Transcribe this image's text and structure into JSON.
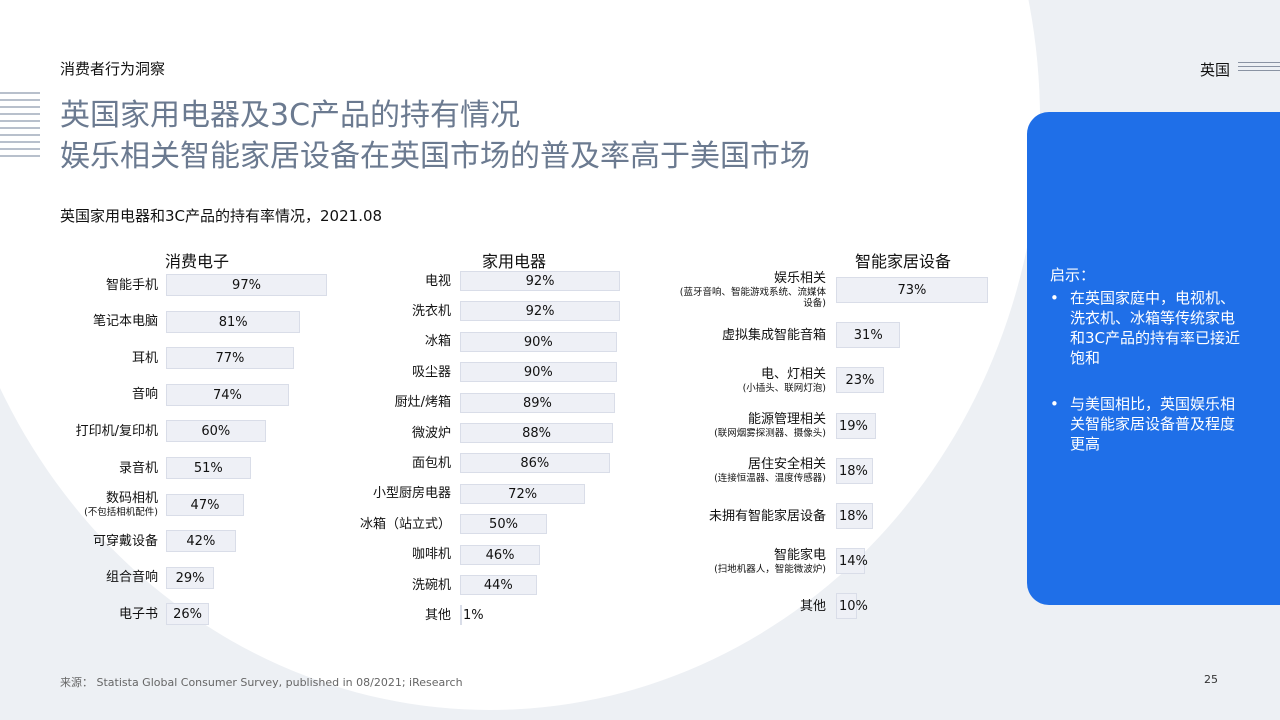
{
  "header": {
    "section_label": "消费者行为洞察",
    "country_label": "英国",
    "title_line1": "英国家用电器及3C产品的持有情况",
    "title_line2": "娱乐相关智能家居设备在英国市场的普及率高于美国市场",
    "subtitle": "英国家用电器和3C产品的持有率情况，2021.08"
  },
  "colors": {
    "page_background": "#edf0f4",
    "title": "#6b7a90",
    "bar_fill": "#eef0f6",
    "bar_border": "#d9dde8",
    "insight_panel": "#1f6fe8"
  },
  "chart_data": [
    {
      "type": "bar",
      "orientation": "horizontal",
      "title": "消费电子",
      "categories": [
        "智能手机",
        "笔记本电脑",
        "耳机",
        "音响",
        "打印机/复印机",
        "录音机",
        "数码相机",
        "可穿戴设备",
        "组合音响",
        "电子书"
      ],
      "notes": [
        "",
        "",
        "",
        "",
        "",
        "",
        "(不包括相机配件)",
        "",
        "",
        ""
      ],
      "values": [
        97,
        81,
        77,
        74,
        60,
        51,
        47,
        42,
        29,
        26
      ],
      "value_labels": [
        "97%",
        "81%",
        "77%",
        "74%",
        "60%",
        "51%",
        "47%",
        "42%",
        "29%",
        "26%"
      ],
      "unit": "%"
    },
    {
      "type": "bar",
      "orientation": "horizontal",
      "title": "家用电器",
      "categories": [
        "电视",
        "洗衣机",
        "冰箱",
        "吸尘器",
        "厨灶/烤箱",
        "微波炉",
        "面包机",
        "小型厨房电器",
        "冰箱（站立式）",
        "咖啡机",
        "洗碗机",
        "其他"
      ],
      "notes": [
        "",
        "",
        "",
        "",
        "",
        "",
        "",
        "",
        "",
        "",
        "",
        ""
      ],
      "values": [
        92,
        92,
        90,
        90,
        89,
        88,
        86,
        72,
        50,
        46,
        44,
        1
      ],
      "value_labels": [
        "92%",
        "92%",
        "90%",
        "90%",
        "89%",
        "88%",
        "86%",
        "72%",
        "50%",
        "46%",
        "44%",
        "1%"
      ],
      "unit": "%"
    },
    {
      "type": "bar",
      "orientation": "horizontal",
      "title": "智能家居设备",
      "categories": [
        "娱乐相关",
        "虚拟集成智能音箱",
        "电、灯相关",
        "能源管理相关",
        "居住安全相关",
        "未拥有智能家居设备",
        "智能家电",
        "其他"
      ],
      "notes": [
        "(蓝牙音响、智能游戏系统、流媒体设备)",
        "",
        "(小插头、联网灯泡)",
        "(联网烟雾探测器、摄像头)",
        "(连接恒温器、温度传感器)",
        "",
        "(扫地机器人，智能微波炉)",
        ""
      ],
      "values": [
        73,
        31,
        23,
        19,
        18,
        18,
        14,
        10
      ],
      "value_labels": [
        "73%",
        "31%",
        "23%",
        "19%",
        "18%",
        "18%",
        "14%",
        "10%"
      ],
      "unit": "%"
    }
  ],
  "insights": {
    "title": "启示：",
    "bullet": "•",
    "items": [
      "在英国家庭中，电视机、洗衣机、冰箱等传统家电和3C产品的持有率已接近饱和",
      "与美国相比，英国娱乐相关智能家居设备普及程度更高"
    ]
  },
  "footer": {
    "source_label": "来源：  Statista Global Consumer Survey, published in 08/2021; iResearch",
    "page_number": "25"
  }
}
